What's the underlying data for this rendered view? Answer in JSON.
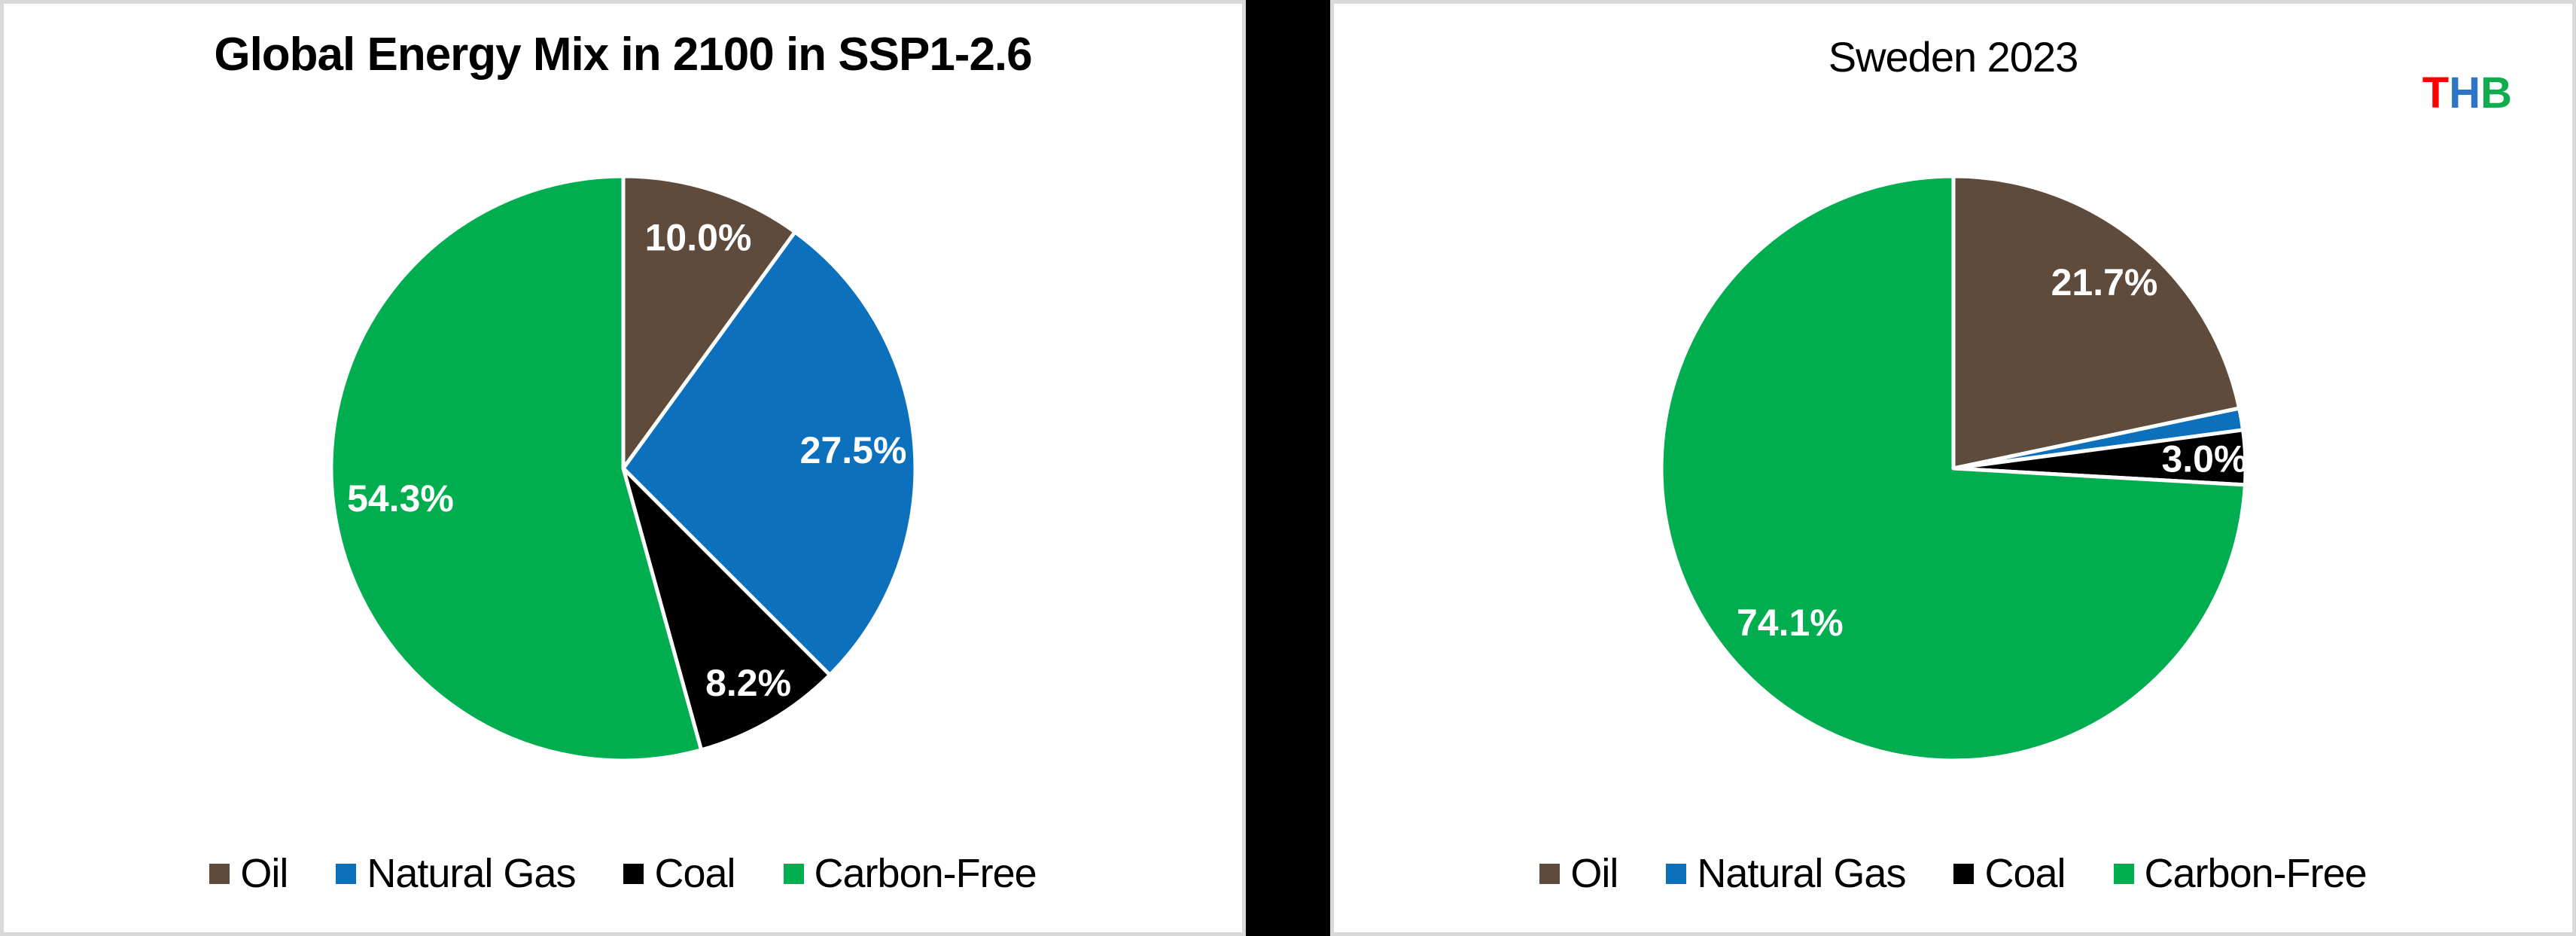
{
  "logo": {
    "letters": [
      {
        "char": "T",
        "color": "#FF0000"
      },
      {
        "char": "H",
        "color": "#2E74C9"
      },
      {
        "char": "B",
        "color": "#10AD4E"
      }
    ]
  },
  "divider_color": "#000000",
  "frame_border_color": "#D9D9D9",
  "chart_data": [
    {
      "type": "pie",
      "title": "Global Energy Mix in 2100 in SSP1-2.6",
      "title_bold": true,
      "start_angle_deg": 0,
      "direction": "clockwise",
      "legend_position": "bottom",
      "label_color": "#FFFFFF",
      "slices": [
        {
          "label": "Oil",
          "value": 10.0,
          "display": "10.0%",
          "color": "#5E4B3C",
          "label_r": 0.83
        },
        {
          "label": "Natural Gas",
          "value": 27.5,
          "display": "27.5%",
          "color": "#0D70BC",
          "label_r": 0.79
        },
        {
          "label": "Coal",
          "value": 8.2,
          "display": "8.2%",
          "color": "#000000",
          "label_r": 0.85
        },
        {
          "label": "Carbon-Free",
          "value": 54.3,
          "display": "54.3%",
          "color": "#00AD4F",
          "label_r": 0.77
        }
      ]
    },
    {
      "type": "pie",
      "title": "Sweden 2023",
      "title_bold": false,
      "start_angle_deg": 0,
      "direction": "clockwise",
      "legend_position": "bottom",
      "label_color": "#FFFFFF",
      "slices": [
        {
          "label": "Oil",
          "value": 21.7,
          "display": "21.7%",
          "color": "#5E4B3C",
          "label_r": 0.82
        },
        {
          "label": "Natural Gas",
          "value": 1.2,
          "display": "",
          "color": "#0D70BC",
          "label_r": 0.9
        },
        {
          "label": "Coal",
          "value": 3.0,
          "display": "3.0%",
          "color": "#000000",
          "label_r": 0.86
        },
        {
          "label": "Carbon-Free",
          "value": 74.1,
          "display": "74.1%",
          "color": "#00AD4F",
          "label_r": 0.77
        }
      ]
    }
  ]
}
